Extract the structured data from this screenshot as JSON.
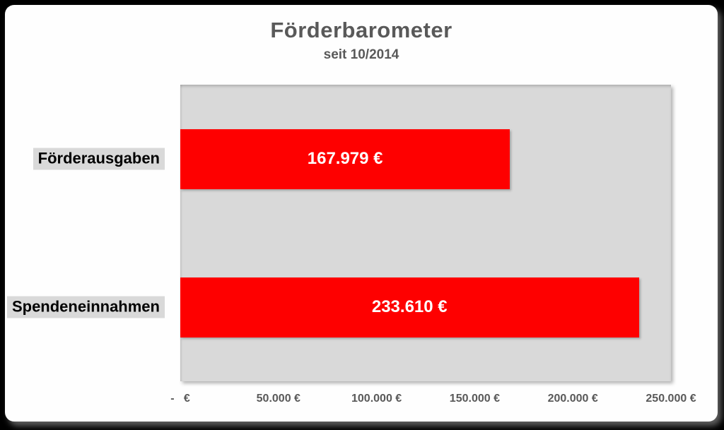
{
  "colors": {
    "background": "#000000",
    "card": "#fefefe",
    "bar": "#fe0000",
    "plot_background": "#d9d9d9",
    "category_label_background": "#d9d9d9",
    "category_label_text": "#000000",
    "bar_value_text": "#ffffff",
    "title_text": "#595959",
    "tick_text": "#595959"
  },
  "chart_data": {
    "type": "bar",
    "orientation": "horizontal",
    "title": "Förderbarometer",
    "subtitle": "seit 10/2014",
    "categories": [
      "Förderausgaben",
      "Spendeneinnahmen"
    ],
    "values": [
      167979,
      233610
    ],
    "value_labels": [
      "167.979 €",
      "233.610 €"
    ],
    "xlabel": "",
    "ylabel": "",
    "xlim": [
      0,
      250000
    ],
    "grid": false,
    "legend": false,
    "x_ticks": [
      {
        "label": "-   €",
        "value": 0
      },
      {
        "label": "50.000 €",
        "value": 50000
      },
      {
        "label": "100.000 €",
        "value": 100000
      },
      {
        "label": "150.000 €",
        "value": 150000
      },
      {
        "label": "200.000 €",
        "value": 200000
      },
      {
        "label": "250.000 €",
        "value": 250000
      }
    ]
  }
}
